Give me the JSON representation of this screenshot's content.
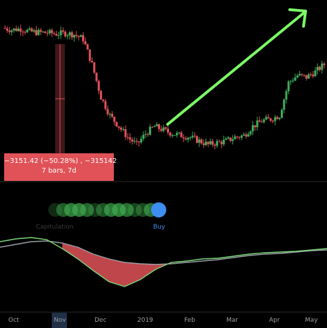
{
  "measure": {
    "change_line": "−3151.42 (−50.28%) , −315142",
    "bars_line": "7 bars, 7d"
  },
  "signal": {
    "left_label": "Capitulation",
    "right_label": "Buy"
  },
  "colors": {
    "up": "#3fae5a",
    "down": "#e05258",
    "arrow": "#7cfc66",
    "buy": "#3d8ef0",
    "fast_line": "#7cd87a",
    "slow_line": "#9aa0a6",
    "fill": "#e05258"
  },
  "chart_data": {
    "type": "line",
    "title": "",
    "xlabel": "",
    "ylabel": "",
    "x_ticks": [
      "Oct",
      "Nov",
      "Dec",
      "2019",
      "Feb",
      "Mar",
      "Apr",
      "May"
    ],
    "price_series": {
      "name": "",
      "values": [
        6600,
        6550,
        6580,
        6500,
        6480,
        6470,
        6440,
        6460,
        6420,
        6300,
        5600,
        4700,
        4200,
        3900,
        3600,
        3400,
        3700,
        3900,
        3800,
        3700,
        3650,
        3600,
        3500,
        3400,
        3450,
        3500,
        3600,
        3650,
        3900,
        4050,
        4100,
        4200,
        5100,
        5300,
        5250,
        5400,
        5600
      ]
    },
    "fast_oscillator": {
      "name": "",
      "values": [
        0.3,
        0.34,
        0.36,
        0.33,
        0.2,
        0.05,
        -0.12,
        -0.28,
        -0.35,
        -0.25,
        -0.1,
        0.0,
        0.02,
        0.05,
        0.06,
        0.09,
        0.12,
        0.14,
        0.15,
        0.16,
        0.18,
        0.2
      ]
    },
    "slow_oscillator": {
      "name": "",
      "values": [
        0.22,
        0.26,
        0.3,
        0.31,
        0.28,
        0.22,
        0.12,
        0.05,
        0.0,
        -0.02,
        -0.03,
        -0.02,
        0.0,
        0.02,
        0.04,
        0.07,
        0.1,
        0.12,
        0.13,
        0.15,
        0.17,
        0.18
      ]
    }
  }
}
